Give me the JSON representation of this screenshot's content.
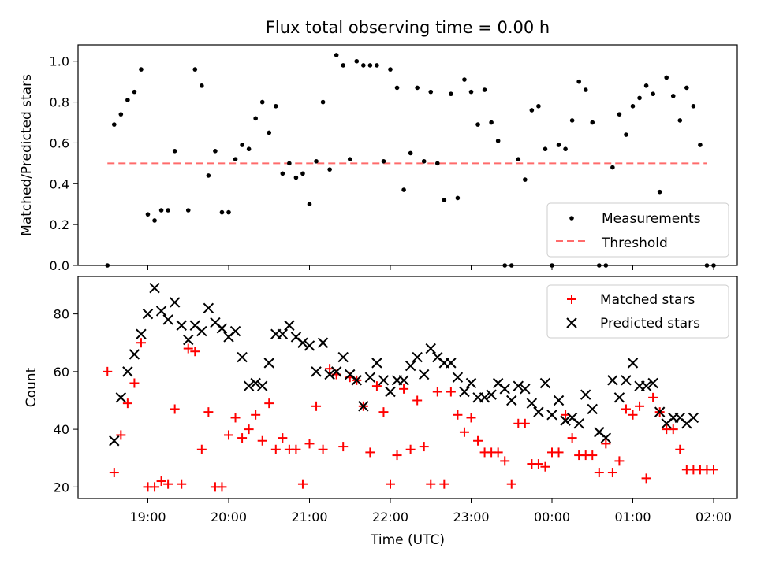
{
  "chart_data": [
    {
      "type": "scatter",
      "title": "Flux total observing time = 0.00 h",
      "xlabel": "",
      "ylabel": "Matched/Predicted stars",
      "ylim": [
        0,
        1.08
      ],
      "yticks": [
        "0.0",
        "0.2",
        "0.4",
        "0.6",
        "0.8",
        "1.0"
      ],
      "threshold": {
        "name": "Threshold",
        "value": 0.5,
        "color": "#ff6b6b"
      },
      "legend_position": "lower-right",
      "series": [
        {
          "name": "Measurements",
          "marker": "dot",
          "color": "#000000",
          "x": [
            "18:30",
            "18:35",
            "18:40",
            "18:45",
            "18:50",
            "18:55",
            "19:00",
            "19:05",
            "19:10",
            "19:15",
            "19:20",
            "19:30",
            "19:35",
            "19:40",
            "19:45",
            "19:50",
            "19:55",
            "20:00",
            "20:05",
            "20:10",
            "20:15",
            "20:20",
            "20:25",
            "20:30",
            "20:35",
            "20:40",
            "20:45",
            "20:50",
            "20:55",
            "21:00",
            "21:05",
            "21:10",
            "21:15",
            "21:20",
            "21:25",
            "21:30",
            "21:35",
            "21:40",
            "21:45",
            "21:50",
            "21:55",
            "22:00",
            "22:05",
            "22:10",
            "22:15",
            "22:20",
            "22:25",
            "22:30",
            "22:35",
            "22:40",
            "22:45",
            "22:50",
            "22:55",
            "23:00",
            "23:05",
            "23:10",
            "23:15",
            "23:20",
            "23:25",
            "23:30",
            "23:35",
            "23:40",
            "23:45",
            "23:50",
            "23:55",
            "00:00",
            "00:05",
            "00:10",
            "00:15",
            "00:20",
            "00:25",
            "00:30",
            "00:35",
            "00:40",
            "00:45",
            "00:50",
            "00:55",
            "01:00",
            "01:05",
            "01:10",
            "01:15",
            "01:20",
            "01:25",
            "01:30",
            "01:35",
            "01:40",
            "01:45",
            "01:50",
            "01:55",
            "02:00"
          ],
          "y": [
            0.0,
            0.69,
            0.74,
            0.81,
            0.85,
            0.96,
            0.25,
            0.22,
            0.27,
            0.27,
            0.56,
            0.27,
            0.96,
            0.88,
            0.44,
            0.56,
            0.26,
            0.26,
            0.52,
            0.59,
            0.57,
            0.72,
            0.8,
            0.65,
            0.78,
            0.45,
            0.5,
            0.43,
            0.45,
            0.3,
            0.51,
            0.8,
            0.47,
            1.03,
            0.98,
            0.52,
            1.0,
            0.98,
            0.98,
            0.98,
            0.51,
            0.96,
            0.87,
            0.37,
            0.55,
            0.87,
            0.51,
            0.85,
            0.5,
            0.32,
            0.84,
            0.33,
            0.91,
            0.85,
            0.69,
            0.86,
            0.7,
            0.61,
            0.0,
            0.0,
            0.52,
            0.42,
            0.76,
            0.78,
            0.57,
            0.0,
            0.59,
            0.57,
            0.71,
            0.9,
            0.86,
            0.7,
            0.0,
            0.0,
            0.48,
            0.74,
            0.64,
            0.78,
            0.82,
            0.88,
            0.84,
            0.36,
            0.92,
            0.83,
            0.71,
            0.87,
            0.78,
            0.59,
            0.0,
            0.0
          ]
        }
      ]
    },
    {
      "type": "scatter",
      "xlabel": "Time (UTC)",
      "ylabel": "Count",
      "ylim": [
        16,
        93
      ],
      "yticks": [
        "20",
        "40",
        "60",
        "80"
      ],
      "xticks": [
        "19:00",
        "20:00",
        "21:00",
        "22:00",
        "23:00",
        "00:00",
        "01:00",
        "02:00"
      ],
      "legend_position": "top-right",
      "series": [
        {
          "name": "Matched stars",
          "marker": "plus",
          "color": "#ff0000",
          "x": [
            "18:30",
            "18:35",
            "18:40",
            "18:45",
            "18:50",
            "18:55",
            "19:00",
            "19:05",
            "19:10",
            "19:15",
            "19:20",
            "19:25",
            "19:30",
            "19:35",
            "19:40",
            "19:45",
            "19:50",
            "19:55",
            "20:00",
            "20:05",
            "20:10",
            "20:15",
            "20:20",
            "20:25",
            "20:30",
            "20:35",
            "20:40",
            "20:45",
            "20:50",
            "20:55",
            "21:00",
            "21:05",
            "21:10",
            "21:15",
            "21:20",
            "21:25",
            "21:30",
            "21:35",
            "21:40",
            "21:45",
            "21:50",
            "21:55",
            "22:00",
            "22:05",
            "22:10",
            "22:15",
            "22:20",
            "22:25",
            "22:30",
            "22:35",
            "22:40",
            "22:45",
            "22:50",
            "22:55",
            "23:00",
            "23:05",
            "23:10",
            "23:15",
            "23:20",
            "23:25",
            "23:30",
            "23:35",
            "23:40",
            "23:45",
            "23:50",
            "23:55",
            "00:00",
            "00:05",
            "00:10",
            "00:15",
            "00:20",
            "00:25",
            "00:30",
            "00:35",
            "00:40",
            "00:45",
            "00:50",
            "00:55",
            "01:00",
            "01:05",
            "01:10",
            "01:15",
            "01:20",
            "01:25",
            "01:30",
            "01:35",
            "01:40",
            "01:45",
            "01:50",
            "01:55",
            "02:00"
          ],
          "y": [
            60,
            25,
            38,
            49,
            56,
            70,
            20,
            20,
            22,
            21,
            47,
            21,
            68,
            67,
            33,
            46,
            20,
            20,
            38,
            44,
            37,
            40,
            45,
            36,
            49,
            33,
            37,
            33,
            33,
            21,
            35,
            48,
            33,
            61,
            59,
            34,
            58,
            57,
            48,
            32,
            55,
            46,
            21,
            31,
            54,
            33,
            50,
            34,
            21,
            53,
            21,
            53,
            45,
            39,
            44,
            36,
            32,
            32,
            32,
            29,
            21,
            42,
            42,
            28,
            28,
            27,
            32,
            32,
            45,
            37,
            31,
            31,
            31,
            25,
            35,
            25,
            29,
            47,
            45,
            48,
            23,
            51,
            46,
            40,
            40,
            33,
            26,
            26,
            26,
            26,
            26
          ]
        },
        {
          "name": "Predicted stars",
          "marker": "x",
          "color": "#000000",
          "x": [
            "18:35",
            "18:40",
            "18:45",
            "18:50",
            "18:55",
            "19:00",
            "19:05",
            "19:10",
            "19:15",
            "19:20",
            "19:25",
            "19:30",
            "19:35",
            "19:40",
            "19:45",
            "19:50",
            "19:55",
            "20:00",
            "20:05",
            "20:10",
            "20:15",
            "20:20",
            "20:25",
            "20:30",
            "20:35",
            "20:40",
            "20:45",
            "20:50",
            "20:55",
            "21:00",
            "21:05",
            "21:10",
            "21:15",
            "21:20",
            "21:25",
            "21:30",
            "21:35",
            "21:40",
            "21:45",
            "21:50",
            "21:55",
            "22:00",
            "22:05",
            "22:10",
            "22:15",
            "22:20",
            "22:25",
            "22:30",
            "22:35",
            "22:40",
            "22:45",
            "22:50",
            "22:55",
            "23:00",
            "23:05",
            "23:10",
            "23:15",
            "23:20",
            "23:25",
            "23:30",
            "23:35",
            "23:40",
            "23:45",
            "23:50",
            "23:55",
            "00:00",
            "00:05",
            "00:10",
            "00:15",
            "00:20",
            "00:25",
            "00:30",
            "00:35",
            "00:40",
            "00:45",
            "00:50",
            "00:55",
            "01:00",
            "01:05",
            "01:10",
            "01:15",
            "01:20",
            "01:25",
            "01:30",
            "01:35",
            "01:40",
            "01:45"
          ],
          "y": [
            36,
            51,
            60,
            66,
            73,
            80,
            89,
            81,
            78,
            84,
            76,
            71,
            76,
            74,
            82,
            77,
            75,
            72,
            74,
            65,
            55,
            56,
            55,
            63,
            73,
            73,
            76,
            72,
            70,
            69,
            60,
            70,
            59,
            60,
            65,
            59,
            57,
            48,
            58,
            63,
            57,
            53,
            57,
            57,
            62,
            65,
            59,
            68,
            65,
            63,
            63,
            58,
            53,
            56,
            51,
            51,
            52,
            56,
            54,
            50,
            55,
            54,
            49,
            46,
            56,
            45,
            50,
            43,
            44,
            42,
            52,
            47,
            39,
            37,
            57,
            51,
            57,
            63,
            55,
            55,
            56,
            46,
            42,
            44,
            44,
            42,
            44
          ]
        }
      ]
    }
  ]
}
